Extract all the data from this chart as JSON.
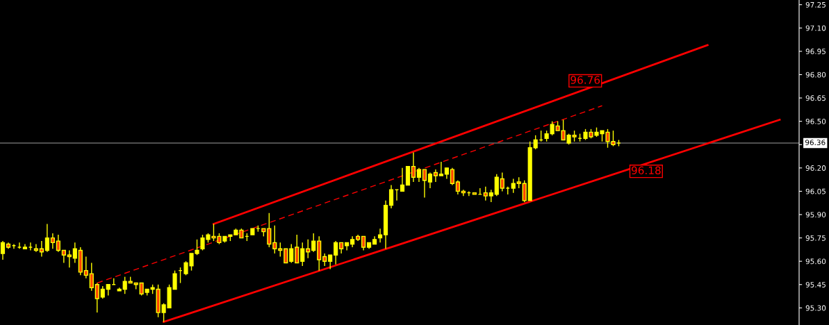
{
  "chart_data": {
    "type": "candlestick",
    "categories": [
      null,
      null,
      null,
      null,
      null,
      null,
      null,
      null,
      null,
      null,
      null,
      null,
      null,
      null,
      null,
      null,
      null,
      null,
      null,
      null,
      null,
      null,
      null,
      null,
      null,
      null,
      null,
      null,
      null,
      null,
      null,
      null,
      null,
      null,
      null,
      null,
      null,
      null,
      null,
      null,
      null,
      null,
      null,
      null,
      null,
      null,
      null,
      null,
      null,
      null,
      null,
      null,
      null,
      null,
      null,
      null,
      null,
      null,
      null,
      null,
      null,
      null,
      null,
      null,
      null,
      null,
      null,
      null,
      null,
      null,
      null,
      null,
      null,
      null,
      null,
      null,
      null,
      null,
      null,
      null,
      null,
      null,
      null,
      null,
      null,
      null,
      null,
      null,
      null,
      null,
      null,
      null,
      null,
      null,
      null,
      null,
      null,
      null,
      null,
      null,
      null,
      null,
      null,
      null,
      null,
      null,
      null,
      null,
      null,
      null,
      null,
      null,
      null,
      null,
      null,
      null,
      null,
      null,
      null,
      null,
      null,
      null,
      null,
      null,
      null,
      null,
      null,
      null,
      null,
      null,
      null,
      null,
      null,
      null,
      null,
      null,
      null,
      null,
      null,
      null,
      null,
      null,
      null,
      null
    ],
    "ohlc": [
      [
        95.65,
        95.73,
        95.61,
        95.72
      ],
      [
        95.71,
        95.72,
        95.68,
        95.69
      ],
      [
        95.7,
        95.71,
        95.68,
        95.7
      ],
      [
        95.69,
        95.72,
        95.68,
        95.69
      ],
      [
        95.68,
        95.71,
        95.68,
        95.69
      ],
      [
        95.69,
        95.72,
        95.67,
        95.69
      ],
      [
        95.68,
        95.71,
        95.66,
        95.67
      ],
      [
        95.68,
        95.73,
        95.63,
        95.66
      ],
      [
        95.67,
        95.84,
        95.66,
        95.75
      ],
      [
        95.75,
        95.78,
        95.68,
        95.72
      ],
      [
        95.73,
        95.77,
        95.66,
        95.67
      ],
      [
        95.67,
        95.67,
        95.59,
        95.64
      ],
      [
        95.64,
        95.67,
        95.56,
        95.63
      ],
      [
        95.62,
        95.72,
        95.59,
        95.68
      ],
      [
        95.67,
        95.69,
        95.51,
        95.53
      ],
      [
        95.54,
        95.63,
        95.49,
        95.51
      ],
      [
        95.52,
        95.59,
        95.41,
        95.43
      ],
      [
        95.45,
        95.46,
        95.27,
        95.36
      ],
      [
        95.37,
        95.44,
        95.36,
        95.42
      ],
      [
        95.42,
        95.45,
        95.38,
        95.45
      ],
      [
        95.45,
        95.49,
        95.45,
        95.45
      ],
      [
        95.41,
        95.43,
        95.41,
        95.42
      ],
      [
        95.42,
        95.5,
        95.39,
        95.47
      ],
      [
        95.47,
        95.5,
        95.46,
        95.46
      ],
      [
        95.46,
        95.46,
        95.42,
        95.45
      ],
      [
        95.46,
        95.46,
        95.38,
        95.39
      ],
      [
        95.4,
        95.42,
        95.38,
        95.42
      ],
      [
        95.42,
        95.45,
        95.39,
        95.43
      ],
      [
        95.42,
        95.45,
        95.24,
        95.27
      ],
      [
        95.27,
        95.33,
        95.21,
        95.32
      ],
      [
        95.3,
        95.45,
        95.3,
        95.43
      ],
      [
        95.42,
        95.54,
        95.42,
        95.52
      ],
      [
        95.54,
        95.56,
        95.46,
        95.54
      ],
      [
        95.52,
        95.6,
        95.51,
        95.59
      ],
      [
        95.57,
        95.65,
        95.54,
        95.65
      ],
      [
        95.65,
        95.74,
        95.64,
        95.67
      ],
      [
        95.68,
        95.77,
        95.67,
        95.75
      ],
      [
        95.74,
        95.78,
        95.72,
        95.77
      ],
      [
        95.76,
        95.84,
        95.73,
        95.75
      ],
      [
        95.76,
        95.78,
        95.71,
        95.72
      ],
      [
        95.73,
        95.76,
        95.72,
        95.76
      ],
      [
        95.76,
        95.77,
        95.73,
        95.77
      ],
      [
        95.77,
        95.81,
        95.77,
        95.8
      ],
      [
        95.8,
        95.81,
        95.75,
        95.75
      ],
      [
        95.76,
        95.78,
        95.73,
        95.76
      ],
      [
        95.77,
        95.81,
        95.77,
        95.81
      ],
      [
        95.81,
        95.83,
        95.79,
        95.81
      ],
      [
        95.81,
        95.81,
        95.76,
        95.79
      ],
      [
        95.81,
        95.91,
        95.69,
        95.71
      ],
      [
        95.72,
        95.83,
        95.65,
        95.68
      ],
      [
        95.68,
        95.72,
        95.63,
        95.67
      ],
      [
        95.68,
        95.68,
        95.59,
        95.59
      ],
      [
        95.6,
        95.71,
        95.59,
        95.68
      ],
      [
        95.69,
        95.77,
        95.59,
        95.59
      ],
      [
        95.6,
        95.72,
        95.57,
        95.68
      ],
      [
        95.68,
        95.74,
        95.62,
        95.66
      ],
      [
        95.67,
        95.78,
        95.66,
        95.73
      ],
      [
        95.73,
        95.76,
        95.54,
        95.61
      ],
      [
        95.63,
        95.65,
        95.57,
        95.6
      ],
      [
        95.6,
        95.64,
        95.55,
        95.64
      ],
      [
        95.64,
        95.73,
        95.58,
        95.72
      ],
      [
        95.72,
        95.72,
        95.65,
        95.68
      ],
      [
        95.7,
        95.72,
        95.67,
        95.72
      ],
      [
        95.71,
        95.76,
        95.69,
        95.74
      ],
      [
        95.76,
        95.77,
        95.73,
        95.74
      ],
      [
        95.76,
        95.76,
        95.67,
        95.69
      ],
      [
        95.69,
        95.72,
        95.68,
        95.72
      ],
      [
        95.71,
        95.76,
        95.71,
        95.74
      ],
      [
        95.75,
        95.81,
        95.72,
        95.77
      ],
      [
        95.77,
        95.99,
        95.68,
        95.96
      ],
      [
        95.96,
        96.09,
        95.94,
        96.06
      ],
      [
        96.06,
        96.06,
        95.99,
        96.06
      ],
      [
        96.05,
        96.2,
        96.05,
        96.09
      ],
      [
        96.09,
        96.21,
        96.09,
        96.21
      ],
      [
        96.21,
        96.3,
        96.11,
        96.14
      ],
      [
        96.14,
        96.2,
        96.11,
        96.19
      ],
      [
        96.19,
        96.19,
        96.01,
        96.12
      ],
      [
        96.11,
        96.17,
        96.07,
        96.16
      ],
      [
        96.17,
        96.19,
        96.11,
        96.15
      ],
      [
        96.15,
        96.24,
        96.15,
        96.16
      ],
      [
        96.16,
        96.2,
        96.13,
        96.2
      ],
      [
        96.19,
        96.2,
        96.09,
        96.1
      ],
      [
        96.11,
        96.12,
        96.03,
        96.05
      ],
      [
        96.05,
        96.06,
        96.02,
        96.04
      ],
      [
        96.04,
        96.05,
        96.02,
        96.04
      ],
      [
        96.04,
        96.04,
        96.03,
        96.03
      ],
      [
        96.03,
        96.07,
        96.03,
        96.03
      ],
      [
        96.04,
        96.08,
        95.99,
        96.02
      ],
      [
        96.02,
        96.06,
        95.98,
        96.04
      ],
      [
        96.03,
        96.16,
        96.02,
        96.14
      ],
      [
        96.13,
        96.17,
        96.05,
        96.07
      ],
      [
        96.07,
        96.08,
        96.03,
        96.07
      ],
      [
        96.07,
        96.13,
        96.04,
        96.1
      ],
      [
        96.11,
        96.14,
        96.07,
        96.1
      ],
      [
        96.1,
        96.12,
        95.98,
        95.99
      ],
      [
        95.99,
        96.37,
        95.99,
        96.33
      ],
      [
        96.33,
        96.41,
        96.32,
        96.38
      ],
      [
        96.38,
        96.44,
        96.37,
        96.38
      ],
      [
        96.39,
        96.44,
        96.37,
        96.42
      ],
      [
        96.42,
        96.5,
        96.41,
        96.48
      ],
      [
        96.47,
        96.5,
        96.44,
        96.44
      ],
      [
        96.44,
        96.51,
        96.38,
        96.38
      ],
      [
        96.36,
        96.42,
        96.35,
        96.41
      ],
      [
        96.41,
        96.44,
        96.37,
        96.4
      ],
      [
        96.39,
        96.42,
        96.37,
        96.39
      ],
      [
        96.39,
        96.45,
        96.38,
        96.43
      ],
      [
        96.43,
        96.45,
        96.39,
        96.4
      ],
      [
        96.41,
        96.46,
        96.4,
        96.43
      ],
      [
        96.42,
        96.44,
        96.37,
        96.44
      ],
      [
        96.43,
        96.45,
        96.33,
        96.37
      ],
      [
        96.37,
        96.44,
        96.34,
        96.35
      ],
      [
        96.36,
        96.38,
        96.34,
        96.36
      ],
      null,
      null,
      null,
      null,
      null,
      null,
      null,
      null,
      null,
      null,
      null,
      null,
      null,
      null,
      null,
      null,
      null,
      null,
      null,
      null,
      null,
      null,
      null,
      null,
      null,
      null,
      null,
      null,
      null,
      null,
      null,
      null
    ],
    "colors": [
      "#ffff00",
      "#ff4500",
      "#ffff00",
      "#ffff00",
      "#ffff00",
      "#ffff00",
      "#ff4500",
      "#ff4500",
      "#ffff00",
      "#ff4500",
      "#ff4500",
      "#ff4500",
      "#ff4500",
      "#ffff00",
      "#ff4500",
      "#ff4500",
      "#ff4500",
      "#ff4500",
      "#ffff00",
      "#ffff00",
      "#ffff00",
      "#ffff00",
      "#ffff00",
      "#ff4500",
      "#ff4500",
      "#ff4500",
      "#ffff00",
      "#ffff00",
      "#ff4500",
      "#ffff00",
      "#ffff00",
      "#ffff00",
      "#ffff00",
      "#ffff00",
      "#ffff00",
      "#ffff00",
      "#ffff00",
      "#ffff00",
      "#ff4500",
      "#ff4500",
      "#ffff00",
      "#ffff00",
      "#ffff00",
      "#ff4500",
      "#ffff00",
      "#ffff00",
      "#ffff00",
      "#ff4500",
      "#ff4500",
      "#ff4500",
      "#ff4500",
      "#ff4500",
      "#ffff00",
      "#ff4500",
      "#ffff00",
      "#ff4500",
      "#ffff00",
      "#ff4500",
      "#ff4500",
      "#ffff00",
      "#ffff00",
      "#ff4500",
      "#ffff00",
      "#ffff00",
      "#ff4500",
      "#ff4500",
      "#ffff00",
      "#ffff00",
      "#ffff00",
      "#ffff00",
      "#ffff00",
      "#ffff00",
      "#ffff00",
      "#ffff00",
      "#ff4500",
      "#ffff00",
      "#ff4500",
      "#ffff00",
      "#ff4500",
      "#ffff00",
      "#ffff00",
      "#ff4500",
      "#ff4500",
      "#ff4500",
      "#ffff00",
      "#ff4500",
      "#ffff00",
      "#ff4500",
      "#ffff00",
      "#ffff00",
      "#ff4500",
      "#ffff00",
      "#ffff00",
      "#ff4500",
      "#ff4500",
      "#ffff00",
      "#ffff00",
      "#ffff00",
      "#ffff00",
      "#ffff00",
      "#ff4500",
      "#ff4500",
      "#ffff00",
      "#ff4500",
      "#ffff00",
      "#ffff00",
      "#ff4500",
      "#ffff00",
      "#ffff00",
      "#ff4500",
      "#ff4500",
      "#ffff00",
      null,
      null,
      null,
      null,
      null,
      null,
      null,
      null,
      null,
      null,
      null,
      null,
      null,
      null,
      null,
      null,
      null,
      null,
      null,
      null,
      null,
      null,
      null,
      null,
      null,
      null,
      null,
      null,
      null,
      null,
      null,
      null
    ],
    "series": [
      {
        "type": "line",
        "color": "#ff0000",
        "line_style": "solid",
        "values": [
          null,
          null,
          null,
          null,
          null,
          null,
          null,
          null,
          null,
          null,
          null,
          null,
          null,
          null,
          null,
          null,
          null,
          null,
          null,
          null,
          null,
          null,
          null,
          null,
          null,
          null,
          null,
          null,
          null,
          null,
          null,
          null,
          null,
          null,
          null,
          null,
          null,
          null,
          95.84,
          null,
          null,
          null,
          null,
          null,
          null,
          null,
          null,
          null,
          null,
          null,
          null,
          null,
          null,
          null,
          null,
          null,
          null,
          null,
          null,
          null,
          null,
          null,
          null,
          null,
          null,
          null,
          null,
          null,
          null,
          null,
          null,
          null,
          null,
          null,
          null,
          null,
          null,
          null,
          null,
          null,
          null,
          null,
          null,
          null,
          null,
          null,
          null,
          null,
          null,
          null,
          null,
          null,
          null,
          null,
          null,
          null,
          null,
          null,
          null,
          null,
          null,
          null,
          null,
          null,
          null,
          null,
          null,
          null,
          null,
          null,
          null,
          null,
          null,
          null,
          null,
          null,
          null,
          null,
          null,
          null,
          null,
          null,
          null,
          null,
          null,
          null,
          null,
          96.99,
          null,
          null,
          null,
          null,
          null,
          null,
          null,
          null,
          null,
          null,
          null,
          null,
          null,
          null,
          null,
          null
        ]
      },
      {
        "type": "line",
        "color": "#ff0000",
        "line_style": "solid",
        "values": [
          null,
          null,
          null,
          null,
          null,
          null,
          null,
          null,
          null,
          null,
          null,
          null,
          null,
          null,
          null,
          null,
          null,
          null,
          null,
          null,
          null,
          null,
          null,
          null,
          null,
          null,
          null,
          null,
          null,
          95.21,
          null,
          null,
          null,
          null,
          null,
          null,
          null,
          null,
          null,
          null,
          null,
          null,
          null,
          null,
          null,
          null,
          null,
          null,
          null,
          null,
          null,
          null,
          null,
          null,
          null,
          null,
          null,
          null,
          null,
          null,
          null,
          null,
          null,
          null,
          null,
          null,
          null,
          null,
          null,
          null,
          null,
          null,
          null,
          null,
          null,
          null,
          null,
          null,
          null,
          null,
          null,
          null,
          null,
          null,
          null,
          null,
          null,
          null,
          null,
          null,
          null,
          null,
          null,
          null,
          null,
          null,
          null,
          null,
          null,
          null,
          null,
          null,
          null,
          null,
          null,
          null,
          null,
          null,
          null,
          null,
          null,
          null,
          null,
          null,
          null,
          null,
          null,
          null,
          null,
          null,
          null,
          null,
          null,
          null,
          null,
          null,
          null,
          null,
          null,
          null,
          null,
          null,
          null,
          null,
          null,
          null,
          null,
          null,
          null,
          null,
          96.51,
          null,
          null,
          null
        ]
      },
      {
        "type": "line",
        "color": "#ff0000",
        "line_style": "dashed",
        "values": [
          null,
          null,
          null,
          null,
          null,
          null,
          null,
          null,
          null,
          null,
          null,
          null,
          null,
          null,
          null,
          null,
          null,
          95.46,
          null,
          null,
          null,
          null,
          null,
          null,
          null,
          null,
          null,
          null,
          null,
          null,
          null,
          null,
          null,
          null,
          null,
          null,
          null,
          null,
          null,
          null,
          null,
          null,
          null,
          null,
          null,
          null,
          null,
          null,
          null,
          null,
          null,
          null,
          null,
          null,
          null,
          null,
          null,
          null,
          null,
          null,
          null,
          null,
          null,
          null,
          null,
          null,
          null,
          null,
          null,
          null,
          null,
          null,
          null,
          null,
          null,
          null,
          null,
          null,
          null,
          null,
          null,
          null,
          null,
          null,
          null,
          null,
          null,
          null,
          null,
          null,
          null,
          null,
          null,
          null,
          null,
          null,
          null,
          null,
          null,
          null,
          null,
          null,
          null,
          null,
          null,
          null,
          null,
          null,
          96.6,
          null,
          null,
          null,
          null,
          null,
          null,
          null,
          null,
          null,
          null,
          null,
          null,
          null,
          null,
          null,
          null,
          null,
          null,
          null,
          null,
          null,
          null,
          null,
          null,
          null,
          null,
          null,
          null,
          null,
          null,
          null,
          null,
          null,
          null,
          null
        ]
      }
    ],
    "ylim": [
      95.19,
      97.28
    ],
    "yticks": [
      {
        "value": 95.3,
        "label": "95.30"
      },
      {
        "value": 95.45,
        "label": "95.45"
      },
      {
        "value": 95.6,
        "label": "95.60"
      },
      {
        "value": 95.75,
        "label": "95.75"
      },
      {
        "value": 95.9,
        "label": "95.90"
      },
      {
        "value": 96.05,
        "label": "96.05"
      },
      {
        "value": 96.2,
        "label": "96.20"
      },
      {
        "value": 96.35,
        "label": null
      },
      {
        "value": 96.5,
        "label": "96.50"
      },
      {
        "value": 96.65,
        "label": "96.65"
      },
      {
        "value": 96.8,
        "label": "96.80"
      },
      {
        "value": 96.95,
        "label": "96.95"
      },
      {
        "value": 97.1,
        "label": "97.10"
      },
      {
        "value": 97.25,
        "label": "97.25"
      }
    ],
    "tick_labels": "y",
    "ref_lines": [
      {
        "axis": "y",
        "value": 96.36,
        "label": "96.36",
        "color": "#a0a0a0"
      }
    ],
    "annotations": [
      "96.76",
      "96.18"
    ]
  }
}
